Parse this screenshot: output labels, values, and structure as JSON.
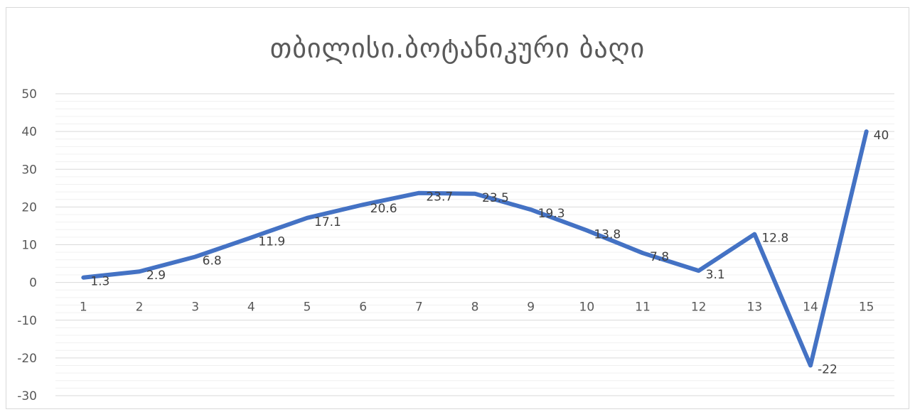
{
  "chart_data": {
    "type": "line",
    "title": "თბილისი.ბოტანიკური ბაღი",
    "xlabel": "",
    "ylabel": "",
    "categories": [
      "1",
      "2",
      "3",
      "4",
      "5",
      "6",
      "7",
      "8",
      "9",
      "10",
      "11",
      "12",
      "13",
      "14",
      "15"
    ],
    "series": [
      {
        "values": [
          1.3,
          2.9,
          6.8,
          11.9,
          17.1,
          20.6,
          23.7,
          23.5,
          19.3,
          13.8,
          7.8,
          3.1,
          12.8,
          -22,
          40
        ],
        "data_labels": [
          "1.3",
          "2.9",
          "6.8",
          "11.9",
          "17.1",
          "20.6",
          "23.7",
          "23.5",
          "19.3",
          "13.8",
          "7.8",
          "3.1",
          "12.8",
          "-22",
          "40"
        ],
        "color": "#4472c4"
      }
    ],
    "ylim": [
      -30,
      50
    ],
    "yticks": [
      -30,
      -20,
      -10,
      0,
      10,
      20,
      30,
      40,
      50
    ],
    "ytick_labels": [
      "-30",
      "-20",
      "-10",
      "0",
      "10",
      "20",
      "30",
      "40",
      "50"
    ],
    "minor_grid_step": 2,
    "grid": true,
    "legend": "none",
    "colors": {
      "line": "#4472c4",
      "major_grid": "#d9d9d9",
      "minor_grid": "#f0f0f0",
      "text": "#595959"
    }
  }
}
